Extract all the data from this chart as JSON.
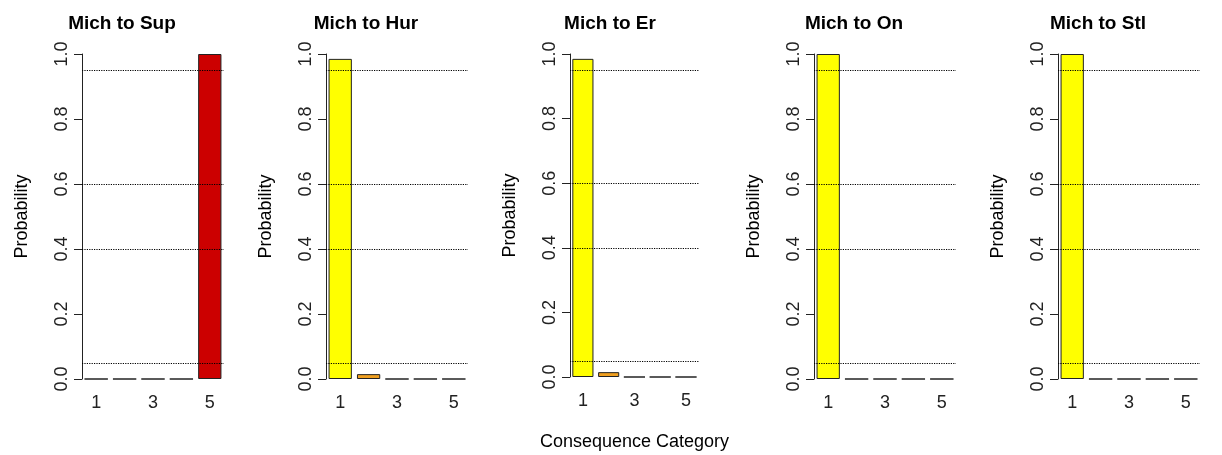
{
  "chart_data": [
    {
      "type": "bar",
      "title": "Mich to Sup",
      "ylabel": "Probability",
      "categories": [
        "1",
        null,
        "3",
        null,
        "5"
      ],
      "values": [
        0,
        0,
        0,
        0,
        1
      ],
      "colors": [
        "#cc0000",
        "#cc0000",
        "#cc0000",
        "#cc0000",
        "#cc0000"
      ],
      "ylim": [
        0,
        1
      ],
      "yticks": [
        {
          "value": 0,
          "label": "0.0"
        },
        {
          "value": 0.2,
          "label": "0.2"
        },
        {
          "value": 0.4,
          "label": "0.4"
        },
        {
          "value": 0.6,
          "label": "0.6"
        },
        {
          "value": 0.8,
          "label": "0.8"
        },
        {
          "value": 1,
          "label": "1.0"
        }
      ],
      "grid": false,
      "ref_lines": [
        {
          "axis": "y",
          "value": 0.05,
          "line_style": "dotted"
        },
        {
          "axis": "y",
          "value": 0.4,
          "line_style": "dotted"
        },
        {
          "axis": "y",
          "value": 0.6,
          "line_style": "dotted"
        },
        {
          "axis": "y",
          "value": 0.95,
          "line_style": "dotted"
        }
      ]
    },
    {
      "type": "bar",
      "title": "Mich to Hur",
      "ylabel": "Probability",
      "categories": [
        "1",
        null,
        "3",
        null,
        "5"
      ],
      "values": [
        0.985,
        0.015,
        0,
        0,
        0
      ],
      "colors": [
        "#ffff00",
        "#f0a020",
        "#ffff00",
        "#ffff00",
        "#ffff00"
      ],
      "ylim": [
        0,
        1
      ],
      "yticks": [
        {
          "value": 0,
          "label": "0.0"
        },
        {
          "value": 0.2,
          "label": "0.2"
        },
        {
          "value": 0.4,
          "label": "0.4"
        },
        {
          "value": 0.6,
          "label": "0.6"
        },
        {
          "value": 0.8,
          "label": "0.8"
        },
        {
          "value": 1,
          "label": "1.0"
        }
      ],
      "grid": false,
      "ref_lines": [
        {
          "axis": "y",
          "value": 0.05,
          "line_style": "dotted"
        },
        {
          "axis": "y",
          "value": 0.4,
          "line_style": "dotted"
        },
        {
          "axis": "y",
          "value": 0.6,
          "line_style": "dotted"
        },
        {
          "axis": "y",
          "value": 0.95,
          "line_style": "dotted"
        }
      ]
    },
    {
      "type": "bar",
      "title": "Mich to Er",
      "ylabel": "Probability",
      "xlabel": "Consequence Category",
      "categories": [
        "1",
        null,
        "3",
        null,
        "5"
      ],
      "values": [
        0.985,
        0.015,
        0,
        0,
        0
      ],
      "colors": [
        "#ffff00",
        "#f0a020",
        "#ffff00",
        "#ffff00",
        "#ffff00"
      ],
      "ylim": [
        0,
        1
      ],
      "yticks": [
        {
          "value": 0,
          "label": "0.0"
        },
        {
          "value": 0.2,
          "label": "0.2"
        },
        {
          "value": 0.4,
          "label": "0.4"
        },
        {
          "value": 0.6,
          "label": "0.6"
        },
        {
          "value": 0.8,
          "label": "0.8"
        },
        {
          "value": 1,
          "label": "1.0"
        }
      ],
      "grid": false,
      "ref_lines": [
        {
          "axis": "y",
          "value": 0.05,
          "line_style": "dotted"
        },
        {
          "axis": "y",
          "value": 0.4,
          "line_style": "dotted"
        },
        {
          "axis": "y",
          "value": 0.6,
          "line_style": "dotted"
        },
        {
          "axis": "y",
          "value": 0.95,
          "line_style": "dotted"
        }
      ]
    },
    {
      "type": "bar",
      "title": "Mich to On",
      "ylabel": "Probability",
      "categories": [
        "1",
        null,
        "3",
        null,
        "5"
      ],
      "values": [
        1,
        0,
        0,
        0,
        0
      ],
      "colors": [
        "#ffff00",
        "#ffff00",
        "#ffff00",
        "#ffff00",
        "#ffff00"
      ],
      "ylim": [
        0,
        1
      ],
      "yticks": [
        {
          "value": 0,
          "label": "0.0"
        },
        {
          "value": 0.2,
          "label": "0.2"
        },
        {
          "value": 0.4,
          "label": "0.4"
        },
        {
          "value": 0.6,
          "label": "0.6"
        },
        {
          "value": 0.8,
          "label": "0.8"
        },
        {
          "value": 1,
          "label": "1.0"
        }
      ],
      "grid": false,
      "ref_lines": [
        {
          "axis": "y",
          "value": 0.05,
          "line_style": "dotted"
        },
        {
          "axis": "y",
          "value": 0.4,
          "line_style": "dotted"
        },
        {
          "axis": "y",
          "value": 0.6,
          "line_style": "dotted"
        },
        {
          "axis": "y",
          "value": 0.95,
          "line_style": "dotted"
        }
      ]
    },
    {
      "type": "bar",
      "title": "Mich to Stl",
      "ylabel": "Probability",
      "categories": [
        "1",
        null,
        "3",
        null,
        "5"
      ],
      "values": [
        1,
        0,
        0,
        0,
        0
      ],
      "colors": [
        "#ffff00",
        "#ffff00",
        "#ffff00",
        "#ffff00",
        "#ffff00"
      ],
      "ylim": [
        0,
        1
      ],
      "yticks": [
        {
          "value": 0,
          "label": "0.0"
        },
        {
          "value": 0.2,
          "label": "0.2"
        },
        {
          "value": 0.4,
          "label": "0.4"
        },
        {
          "value": 0.6,
          "label": "0.6"
        },
        {
          "value": 0.8,
          "label": "0.8"
        },
        {
          "value": 1,
          "label": "1.0"
        }
      ],
      "grid": false,
      "ref_lines": [
        {
          "axis": "y",
          "value": 0.05,
          "line_style": "dotted"
        },
        {
          "axis": "y",
          "value": 0.4,
          "line_style": "dotted"
        },
        {
          "axis": "y",
          "value": 0.6,
          "line_style": "dotted"
        },
        {
          "axis": "y",
          "value": 0.95,
          "line_style": "dotted"
        }
      ]
    }
  ]
}
